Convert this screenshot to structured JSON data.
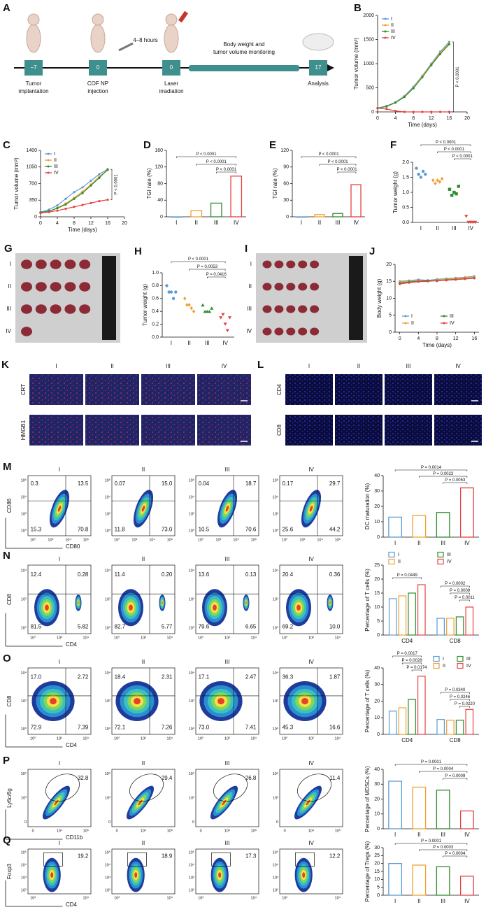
{
  "schematic": {
    "label": "A",
    "steps": [
      {
        "day": "−7",
        "text": [
          "Tumor",
          "implantation"
        ]
      },
      {
        "day": "0",
        "text": [
          "COF NP",
          "injection"
        ]
      },
      {
        "day": "0",
        "text": [
          "Laser",
          "irradiation"
        ]
      },
      {
        "day": "17",
        "text": [
          "Analysis"
        ]
      }
    ],
    "interval": "4–8 hours",
    "monitoring": [
      "Body weight and",
      "tumor volume monitoring"
    ]
  },
  "chart_data": [
    {
      "type": "line",
      "label": "B",
      "ylabel": "Tumor volume (mm³)",
      "xlabel": "Time (days)",
      "x": [
        0,
        2,
        4,
        6,
        8,
        10,
        12,
        14,
        16
      ],
      "xlim": [
        0,
        20
      ],
      "xticks": [
        0,
        4,
        8,
        12,
        16,
        20
      ],
      "ylim": [
        0,
        2000
      ],
      "yticks": [
        0,
        500,
        1000,
        1500,
        2000
      ],
      "legend": "upper left",
      "annotation": "P < 0.0001",
      "series": [
        {
          "name": "I",
          "color": "#5b9bd5",
          "values": [
            80,
            120,
            200,
            330,
            520,
            750,
            1000,
            1250,
            1450
          ]
        },
        {
          "name": "II",
          "color": "#f0a030",
          "values": [
            80,
            110,
            190,
            320,
            500,
            740,
            980,
            1230,
            1420
          ]
        },
        {
          "name": "III",
          "color": "#2e8b2e",
          "values": [
            75,
            115,
            195,
            310,
            490,
            720,
            970,
            1200,
            1400
          ]
        },
        {
          "name": "IV",
          "color": "#e84040",
          "values": [
            80,
            60,
            20,
            0,
            0,
            0,
            0,
            0,
            0
          ]
        }
      ]
    },
    {
      "type": "line",
      "label": "C",
      "ylabel": "Tumor volume (mm³)",
      "xlabel": "Time (days)",
      "x": [
        0,
        2,
        4,
        6,
        8,
        10,
        12,
        14,
        16
      ],
      "xlim": [
        0,
        20
      ],
      "xticks": [
        0,
        4,
        8,
        12,
        16,
        20
      ],
      "ylim": [
        0,
        1400
      ],
      "yticks": [
        0,
        350,
        700,
        1050,
        1400
      ],
      "legend": "upper left",
      "annotation": "P < 0.0001",
      "series": [
        {
          "name": "I",
          "color": "#5b9bd5",
          "values": [
            100,
            150,
            240,
            380,
            520,
            620,
            760,
            900,
            1000
          ]
        },
        {
          "name": "II",
          "color": "#f0a030",
          "values": [
            80,
            110,
            190,
            280,
            400,
            530,
            680,
            850,
            980
          ]
        },
        {
          "name": "III",
          "color": "#2e8b2e",
          "values": [
            90,
            120,
            180,
            260,
            380,
            500,
            660,
            820,
            1000
          ]
        },
        {
          "name": "IV",
          "color": "#e84040",
          "values": [
            80,
            100,
            130,
            170,
            210,
            250,
            290,
            330,
            360
          ]
        }
      ]
    },
    {
      "type": "bar",
      "label": "D",
      "ylabel": "TGI rate (%)",
      "categories": [
        "I",
        "II",
        "III",
        "IV"
      ],
      "values": [
        0,
        15,
        33,
        98
      ],
      "colors": [
        "#5b9bd5",
        "#f0a030",
        "#2e8b2e",
        "#e84040"
      ],
      "ylim": [
        0,
        160
      ],
      "yticks": [
        0,
        40,
        80,
        120,
        160
      ],
      "annotations": [
        "P < 0.0001",
        "P < 0.0001",
        "P < 0.0001"
      ]
    },
    {
      "type": "bar",
      "label": "E",
      "ylabel": "TGI rate (%)",
      "categories": [
        "I",
        "II",
        "III",
        "IV"
      ],
      "values": [
        0,
        4,
        6,
        58
      ],
      "colors": [
        "#5b9bd5",
        "#f0a030",
        "#2e8b2e",
        "#e84040"
      ],
      "ylim": [
        0,
        120
      ],
      "yticks": [
        0,
        30,
        60,
        90,
        120
      ],
      "annotations": [
        "P < 0.0001",
        "P < 0.0001",
        "P < 0.0001"
      ]
    },
    {
      "type": "strip",
      "label": "F",
      "ylabel": "Tumor weight (g)",
      "categories": [
        "I",
        "II",
        "III",
        "IV"
      ],
      "values": [
        [
          1.8,
          1.6,
          1.5,
          1.7,
          1.6
        ],
        [
          1.4,
          1.3,
          1.4,
          1.35,
          1.45
        ],
        [
          1.1,
          0.9,
          1.0,
          0.95,
          1.2
        ],
        [
          0.2,
          0,
          0,
          0,
          0
        ]
      ],
      "colors": [
        "#5b9bd5",
        "#f0a030",
        "#2e8b2e",
        "#e84040"
      ],
      "markers": [
        "circle",
        "diamond",
        "square",
        "triangle-down"
      ],
      "ylim": [
        0,
        2
      ],
      "yticks": [
        {
          "value": 0,
          "label": "0.0"
        },
        0.5,
        {
          "value": 1,
          "label": "1.0"
        },
        1.5,
        {
          "value": 2,
          "label": "2.0"
        }
      ],
      "annotations": [
        "P < 0.0001",
        "P < 0.0001",
        "P < 0.0001"
      ]
    },
    {
      "type": "strip",
      "label": "H",
      "ylabel": "Tumor weight (g)",
      "categories": [
        "I",
        "II",
        "III",
        "IV"
      ],
      "values": [
        [
          0.8,
          0.7,
          0.7,
          0.6,
          0.7
        ],
        [
          0.6,
          0.5,
          0.5,
          0.45,
          0.4
        ],
        [
          0.5,
          0.4,
          0.4,
          0.4,
          0.45
        ],
        [
          0.3,
          0.35,
          0.2,
          0.1,
          0.3
        ]
      ],
      "colors": [
        "#5b9bd5",
        "#f0a030",
        "#2e8b2e",
        "#e84040"
      ],
      "markers": [
        "circle",
        "diamond",
        "triangle-up",
        "triangle-down"
      ],
      "ylim": [
        0,
        1
      ],
      "yticks": [
        {
          "value": 0,
          "label": "0.0"
        },
        0.2,
        0.4,
        0.6,
        0.8,
        {
          "value": 1,
          "label": "1.0"
        }
      ],
      "annotations": [
        "P < 0.0001",
        "P = 0.0053",
        "P = 0.0416"
      ]
    },
    {
      "type": "line",
      "label": "J",
      "ylabel": "Body weight (g)",
      "xlabel": "Time (days)",
      "x": [
        0,
        2,
        4,
        6,
        8,
        10,
        12,
        14,
        16
      ],
      "xlim": [
        -1,
        17
      ],
      "xticks": [
        0,
        4,
        8,
        12,
        16
      ],
      "ylim": [
        0,
        20
      ],
      "yticks": [
        0,
        5,
        10,
        15,
        20
      ],
      "legend": "lower center",
      "series": [
        {
          "name": "I",
          "color": "#5b9bd5",
          "values": [
            15,
            15.2,
            15.5,
            15.3,
            15.6,
            15.8,
            16,
            16.2,
            16.5
          ]
        },
        {
          "name": "II",
          "color": "#f0a030",
          "values": [
            14.8,
            15,
            15.2,
            15.1,
            15.4,
            15.6,
            15.9,
            16.1,
            16.3
          ]
        },
        {
          "name": "III",
          "color": "#2e8b2e",
          "values": [
            14.5,
            14.8,
            15,
            15.2,
            15.1,
            15.4,
            15.6,
            15.8,
            16
          ]
        },
        {
          "name": "IV",
          "color": "#e84040",
          "values": [
            14.2,
            14.6,
            14.9,
            15,
            15.2,
            15.3,
            15.5,
            15.7,
            15.9
          ]
        }
      ]
    },
    {
      "type": "bar",
      "ylabel": "DC maturation (%)",
      "categories": [
        "I",
        "II",
        "III",
        "IV"
      ],
      "values": [
        13,
        14,
        16,
        32
      ],
      "colors": [
        "#5b9bd5",
        "#f0a030",
        "#2e8b2e",
        "#e84040"
      ],
      "ylim": [
        0,
        40
      ],
      "yticks": [
        0,
        10,
        20,
        30,
        40
      ],
      "annotations": [
        "P = 0.0014",
        "P = 0.0023",
        "P = 0.0053"
      ]
    },
    {
      "type": "bar",
      "ylabel": "Percentage of T cells (%)",
      "categories": [
        "CD4",
        "CD8"
      ],
      "legend": "top",
      "ylim": [
        0,
        25
      ],
      "yticks": [
        0,
        5,
        10,
        15,
        20,
        25
      ],
      "series": [
        {
          "name": "I",
          "color": "#5b9bd5",
          "values": [
            13,
            6
          ]
        },
        {
          "name": "II",
          "color": "#f0a030",
          "values": [
            14,
            6
          ]
        },
        {
          "name": "III",
          "color": "#2e8b2e",
          "values": [
            15,
            6.5
          ]
        },
        {
          "name": "IV",
          "color": "#e84040",
          "values": [
            18,
            10
          ]
        }
      ],
      "annotations": [
        [
          "P = 0.0449"
        ],
        [
          "P = 0.0002",
          "P = 0.0009",
          "P = 0.0011"
        ]
      ]
    },
    {
      "type": "bar",
      "ylabel": "Percentage of T cells (%)",
      "categories": [
        "CD4",
        "CD8"
      ],
      "legend": "top",
      "ylim": [
        0,
        40
      ],
      "yticks": [
        0,
        10,
        20,
        30,
        40
      ],
      "series": [
        {
          "name": "I",
          "color": "#5b9bd5",
          "values": [
            14,
            9
          ]
        },
        {
          "name": "II",
          "color": "#f0a030",
          "values": [
            16,
            8.5
          ]
        },
        {
          "name": "III",
          "color": "#2e8b2e",
          "values": [
            21,
            8.5
          ]
        },
        {
          "name": "IV",
          "color": "#e84040",
          "values": [
            35,
            15
          ]
        }
      ],
      "annotations": [
        [
          "P = 0.0017",
          "P = 0.0028",
          "P = 0.0174"
        ],
        [
          "P = 0.0340",
          "P = 0.0246",
          "P = 0.0220"
        ]
      ]
    },
    {
      "type": "bar",
      "ylabel": "Percentage of MDSCs (%)",
      "categories": [
        "I",
        "II",
        "III",
        "IV"
      ],
      "values": [
        32,
        28,
        26,
        12
      ],
      "colors": [
        "#5b9bd5",
        "#f0a030",
        "#2e8b2e",
        "#e84040"
      ],
      "ylim": [
        0,
        40
      ],
      "yticks": [
        0,
        10,
        20,
        30,
        40
      ],
      "annotations": [
        "P = 0.0001",
        "P = 0.0004",
        "P = 0.0009"
      ]
    },
    {
      "type": "bar",
      "ylabel": "Percentage of Tregs (%)",
      "categories": [
        "I",
        "II",
        "III",
        "IV"
      ],
      "values": [
        20,
        19,
        18,
        12
      ],
      "colors": [
        "#5b9bd5",
        "#f0a030",
        "#2e8b2e",
        "#e84040"
      ],
      "ylim": [
        0,
        30
      ],
      "yticks": [
        0,
        5,
        10,
        15,
        20,
        25,
        30
      ],
      "annotations": [
        "P = 0.0001",
        "P = 0.0003",
        "P = 0.0004"
      ]
    }
  ],
  "images": {
    "G": {
      "label": "G",
      "rows": [
        "I",
        "II",
        "III",
        "IV"
      ]
    },
    "I": {
      "label": "I",
      "rows": [
        "I",
        "II",
        "III",
        "IV"
      ]
    },
    "K": {
      "label": "K",
      "columns": [
        "I",
        "II",
        "III",
        "IV"
      ],
      "rows": [
        "CRT",
        "HMGB1"
      ]
    },
    "L": {
      "label": "L",
      "columns": [
        "I",
        "II",
        "III",
        "IV"
      ],
      "rows": [
        "CD4",
        "CD8"
      ]
    }
  },
  "flow": {
    "M": {
      "label": "M",
      "ylabel": "CD86",
      "xlabel": "CD80",
      "xticks": [
        "10⁰",
        "10²",
        "10⁴",
        "10⁶"
      ],
      "yticks": [
        "10⁰",
        "10²",
        "10⁴",
        "10⁶"
      ],
      "plots": [
        {
          "title": "I",
          "quadrants": [
            "0.3",
            "13.5",
            "15.3",
            "70.8"
          ]
        },
        {
          "title": "II",
          "quadrants": [
            "0.07",
            "15.0",
            "11.8",
            "73.0"
          ]
        },
        {
          "title": "III",
          "quadrants": [
            "0.04",
            "18.7",
            "10.5",
            "70.6"
          ]
        },
        {
          "title": "IV",
          "quadrants": [
            "0.17",
            "29.7",
            "25.6",
            "44.2"
          ]
        }
      ]
    },
    "N": {
      "label": "N",
      "ylabel": "CD8",
      "xlabel": "CD4",
      "xticks": [
        "10⁰",
        "10²",
        "10⁴"
      ],
      "yticks": [
        "10⁰",
        "10²",
        "10⁴"
      ],
      "plots": [
        {
          "title": "I",
          "quadrants": [
            "12.4",
            "0.28",
            "81.5",
            "5.82"
          ]
        },
        {
          "title": "II",
          "quadrants": [
            "11.4",
            "0.20",
            "82.7",
            "5.77"
          ]
        },
        {
          "title": "III",
          "quadrants": [
            "13.6",
            "0.13",
            "79.6",
            "6.65"
          ]
        },
        {
          "title": "IV",
          "quadrants": [
            "20.4",
            "0.36",
            "69.2",
            "10.0"
          ]
        }
      ]
    },
    "O": {
      "label": "O",
      "ylabel": "CD8",
      "xlabel": "CD4",
      "xticks": [
        "10⁰",
        "10²",
        "10⁴"
      ],
      "yticks": [
        "10⁰",
        "10²",
        "10⁴"
      ],
      "plots": [
        {
          "title": "I",
          "quadrants": [
            "17.0",
            "2.72",
            "72.9",
            "7.39"
          ]
        },
        {
          "title": "II",
          "quadrants": [
            "18.4",
            "2.31",
            "72.1",
            "7.26"
          ]
        },
        {
          "title": "III",
          "quadrants": [
            "17.1",
            "2.47",
            "73.0",
            "7.41"
          ]
        },
        {
          "title": "IV",
          "quadrants": [
            "36.3",
            "1.87",
            "45.3",
            "16.6"
          ]
        }
      ]
    },
    "P": {
      "label": "P",
      "ylabel": "Ly6c/6g",
      "xlabel": "CD11b",
      "xticks": [
        "0",
        "10⁴",
        "10⁶"
      ],
      "yticks": [
        "0",
        "10³",
        "10⁵"
      ],
      "plots": [
        {
          "title": "I",
          "gate": "32.8"
        },
        {
          "title": "II",
          "gate": "29.4"
        },
        {
          "title": "III",
          "gate": "26.8"
        },
        {
          "title": "IV",
          "gate": "11.4"
        }
      ]
    },
    "Q": {
      "label": "Q",
      "ylabel": "Foxp3",
      "xlabel": "CD4",
      "xticks": [
        "10²",
        "10⁴"
      ],
      "yticks": [
        "10²",
        "10³",
        "10⁴",
        "10⁵"
      ],
      "plots": [
        {
          "title": "I",
          "gate": "19.2"
        },
        {
          "title": "II",
          "gate": "18.9"
        },
        {
          "title": "III",
          "gate": "17.3"
        },
        {
          "title": "IV",
          "gate": "12.2"
        }
      ]
    }
  }
}
